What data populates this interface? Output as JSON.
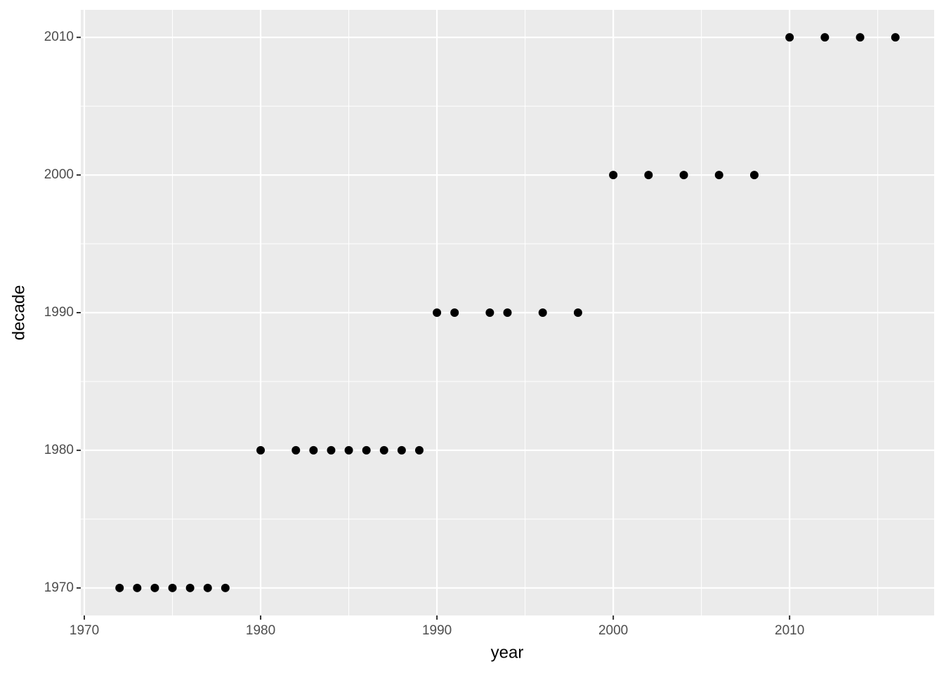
{
  "chart_data": {
    "type": "scatter",
    "x_label": "year",
    "y_label": "decade",
    "x": [
      1972,
      1973,
      1974,
      1975,
      1976,
      1977,
      1978,
      1980,
      1982,
      1983,
      1984,
      1985,
      1986,
      1987,
      1988,
      1989,
      1990,
      1991,
      1993,
      1994,
      1996,
      1998,
      2000,
      2002,
      2004,
      2006,
      2008,
      2010,
      2012,
      2014,
      2016
    ],
    "y": [
      1970,
      1970,
      1970,
      1970,
      1970,
      1970,
      1970,
      1980,
      1980,
      1980,
      1980,
      1980,
      1980,
      1980,
      1980,
      1980,
      1990,
      1990,
      1990,
      1990,
      1990,
      1990,
      2000,
      2000,
      2000,
      2000,
      2000,
      2010,
      2010,
      2010,
      2010
    ],
    "color": "#000000",
    "xlim": [
      1969.8,
      2018.2
    ],
    "xticks": [
      1970,
      1980,
      1990,
      2000,
      2010
    ],
    "ylim": [
      1968,
      2012
    ],
    "yticks": [
      1970,
      1980,
      1990,
      2000,
      2010
    ],
    "grid": true
  }
}
